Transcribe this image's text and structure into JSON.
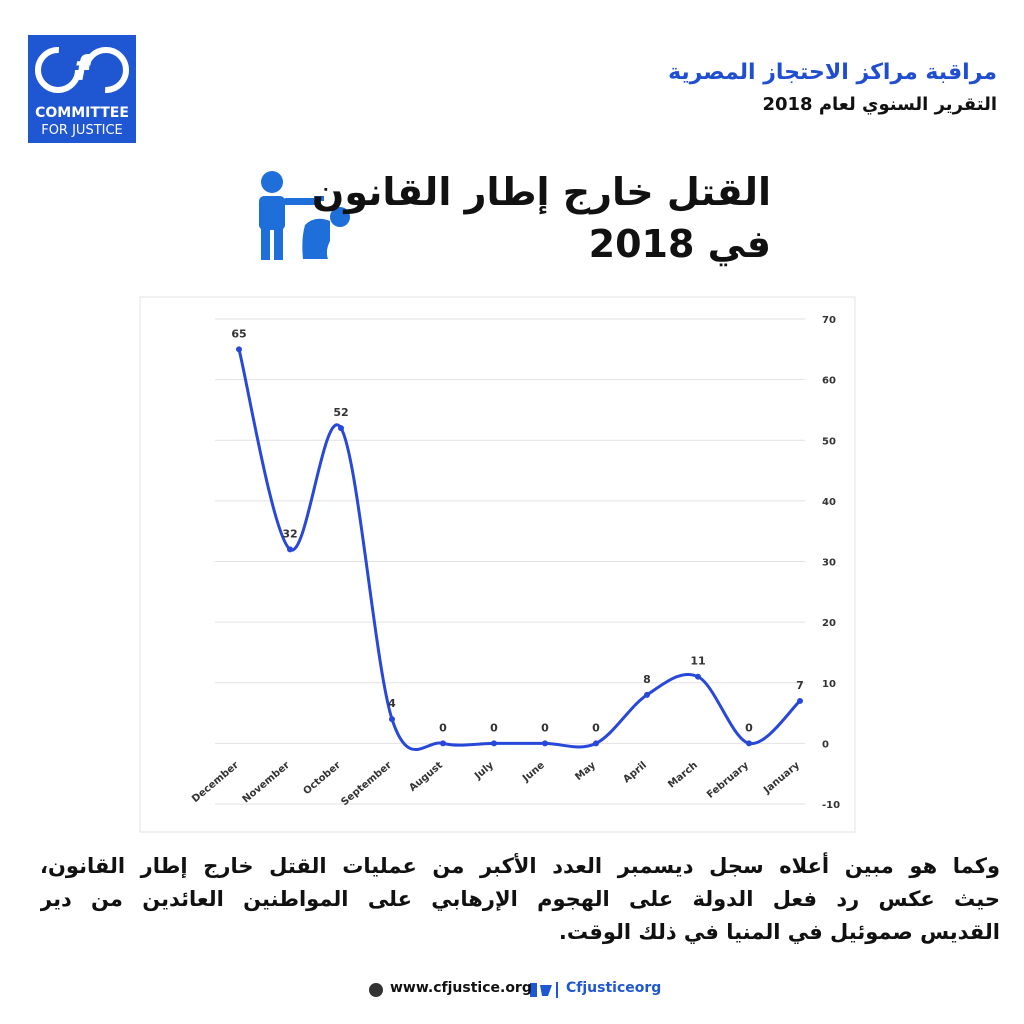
{
  "header": {
    "title": "مراقبة مراكز الاحتجاز المصرية",
    "subtitle": "التقرير السنوي لعام 2018"
  },
  "logo": {
    "line1": "COMMITTEE",
    "line2": "FOR JUSTICE"
  },
  "heading": {
    "line1": "القتل خارج إطار القانون",
    "line2": "في 2018"
  },
  "chart_data": {
    "type": "line",
    "categories": [
      "December",
      "November",
      "October",
      "September",
      "August",
      "July",
      "June",
      "May",
      "April",
      "March",
      "February",
      "January"
    ],
    "series": [
      {
        "color": "#2748d8",
        "values": [
          65,
          32,
          52,
          4,
          0,
          0,
          0,
          0,
          8,
          11,
          0,
          7
        ]
      }
    ],
    "ylim": [
      -10,
      70
    ],
    "yticks": [
      -10,
      0,
      10,
      20,
      30,
      40,
      50,
      60,
      70
    ],
    "grid": true,
    "smooth": true
  },
  "paragraph": {
    "lines": [
      "وكما هو مبين أعلاه سجل ديسمبر العدد الأكبر من عمليات القتل خارج إطار القانون،",
      "حيث عكس رد فعل الدولة على الهجوم الإرهابي على المواطنين العائدين من دير",
      "القديس صموئيل في المنيا في ذلك الوقت."
    ]
  },
  "footer": {
    "website": "www.cfjustice.org",
    "handle": "Cfjusticeorg"
  }
}
